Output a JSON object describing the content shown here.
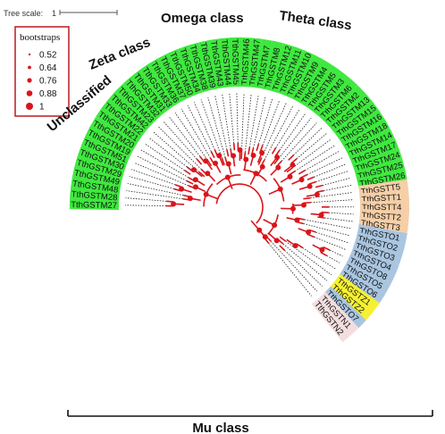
{
  "tree_scale": {
    "label": "Tree scale:",
    "value": "1"
  },
  "legend": {
    "title": "bootstraps",
    "items": [
      "0.52",
      "0.64",
      "0.76",
      "0.88",
      "1"
    ]
  },
  "colors": {
    "branch": "#d9151b",
    "omega": "#a9c5e0",
    "theta": "#f5cfa8",
    "zeta": "#f5f032",
    "unclassified": "#f3dede",
    "mu": "#3fe83f",
    "legend_border": "#c0282d"
  },
  "class_labels": {
    "omega": "Omega class",
    "theta": "Theta class",
    "zeta": "Zeta class",
    "unclassified": "Unclassified",
    "mu": "Mu class"
  },
  "leaves": [
    {
      "label": "TthGSTM27",
      "group": "mu"
    },
    {
      "label": "TthGSTM28",
      "group": "mu"
    },
    {
      "label": "TthGSTM48",
      "group": "mu"
    },
    {
      "label": "TthGSTM49",
      "group": "mu"
    },
    {
      "label": "TthGSTM29",
      "group": "mu"
    },
    {
      "label": "TthGSTM30",
      "group": "mu"
    },
    {
      "label": "TthGSTM51",
      "group": "mu"
    },
    {
      "label": "TthGSTM19",
      "group": "mu"
    },
    {
      "label": "TthGSTM20",
      "group": "mu"
    },
    {
      "label": "TthGSTM21",
      "group": "mu"
    },
    {
      "label": "TthGSTM22",
      "group": "mu"
    },
    {
      "label": "TthGSTM42",
      "group": "mu"
    },
    {
      "label": "TthGSTM23",
      "group": "mu"
    },
    {
      "label": "TthGSTM32",
      "group": "mu"
    },
    {
      "label": "TthGSTM31",
      "group": "mu"
    },
    {
      "label": "TthGSTM33",
      "group": "mu"
    },
    {
      "label": "TthGSTM36",
      "group": "mu"
    },
    {
      "label": "TthGSTM37",
      "group": "mu"
    },
    {
      "label": "TthGSTM50",
      "group": "mu"
    },
    {
      "label": "TthGSTM34",
      "group": "mu"
    },
    {
      "label": "TthGSTM38",
      "group": "mu"
    },
    {
      "label": "TthGSTM39",
      "group": "mu"
    },
    {
      "label": "TthGSTM43",
      "group": "mu"
    },
    {
      "label": "TthGSTM44",
      "group": "mu"
    },
    {
      "label": "TthGSTM45",
      "group": "mu"
    },
    {
      "label": "TthGSTM46",
      "group": "mu"
    },
    {
      "label": "TthGSTM47",
      "group": "mu"
    },
    {
      "label": "TthGSTM7",
      "group": "mu"
    },
    {
      "label": "TthGSTM8",
      "group": "mu"
    },
    {
      "label": "TthGSTM12",
      "group": "mu"
    },
    {
      "label": "TthGSTM11",
      "group": "mu"
    },
    {
      "label": "TthGSTM10",
      "group": "mu"
    },
    {
      "label": "TthGSTM9",
      "group": "mu"
    },
    {
      "label": "TthGSTM4",
      "group": "mu"
    },
    {
      "label": "TthGSTM5",
      "group": "mu"
    },
    {
      "label": "TthGSTM3",
      "group": "mu"
    },
    {
      "label": "TthGSTM6",
      "group": "mu"
    },
    {
      "label": "TthGSTM2",
      "group": "mu"
    },
    {
      "label": "TthGSTM13",
      "group": "mu"
    },
    {
      "label": "TthGSTM15",
      "group": "mu"
    },
    {
      "label": "TthGSTM16",
      "group": "mu"
    },
    {
      "label": "TthGSTM18",
      "group": "mu"
    },
    {
      "label": "TthGSTM14",
      "group": "mu"
    },
    {
      "label": "TthGSTM17",
      "group": "mu"
    },
    {
      "label": "TthGSTM24",
      "group": "mu"
    },
    {
      "label": "TthGSTM25",
      "group": "mu"
    },
    {
      "label": "TthGSTM26",
      "group": "mu"
    },
    {
      "label": "TthGSTT5",
      "group": "theta"
    },
    {
      "label": "TthGSTT1",
      "group": "theta"
    },
    {
      "label": "TthGSTT4",
      "group": "theta"
    },
    {
      "label": "TthGSTT2",
      "group": "theta"
    },
    {
      "label": "TthGSTT3",
      "group": "theta"
    },
    {
      "label": "TthGSTO1",
      "group": "omega"
    },
    {
      "label": "TthGSTO2",
      "group": "omega"
    },
    {
      "label": "TthGSTO3",
      "group": "omega"
    },
    {
      "label": "TthGSTO4",
      "group": "omega"
    },
    {
      "label": "TthGSTO8",
      "group": "omega"
    },
    {
      "label": "TthGSTO5",
      "group": "omega"
    },
    {
      "label": "TthGSTO6",
      "group": "omega"
    },
    {
      "label": "TthGSTZ1",
      "group": "zeta"
    },
    {
      "label": "TthGSTZ2",
      "group": "zeta"
    },
    {
      "label": "TthGSTO7",
      "group": "omega"
    },
    {
      "label": "TthGSTN1",
      "group": "unclassified"
    },
    {
      "label": "TthGSTN2",
      "group": "unclassified"
    }
  ]
}
